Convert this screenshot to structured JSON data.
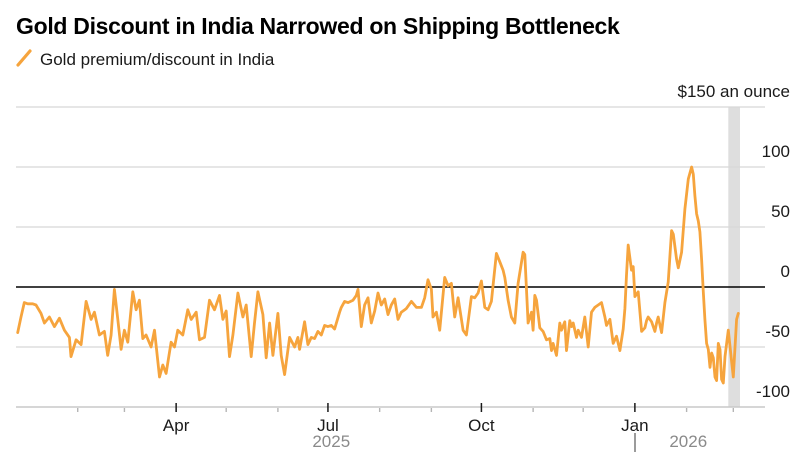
{
  "title": "Gold Discount in India Narrowed on Shipping Bottleneck",
  "legend": {
    "series_label": "Gold premium/discount in India"
  },
  "colors": {
    "line": "#F6A43D",
    "grid": "#D8D8D8",
    "axis_line": "#C9C9C9",
    "zero_line": "#000000",
    "highlight_band": "#DEDEDE",
    "text": "#1a1a1a",
    "year_text": "#8a8a8a"
  },
  "chart_data": {
    "type": "line",
    "title": "Gold Discount in India Narrowed on Shipping Bottleneck",
    "series_name": "Gold premium/discount in India",
    "unit": "US dollars per ounce",
    "ylim": [
      -100,
      150
    ],
    "grid": true,
    "zero_line": true,
    "legend_position": "top-left",
    "y_axis_side": "right",
    "y_ticks": [
      {
        "value": 150,
        "label": "$150 an ounce"
      },
      {
        "value": 100,
        "label": "100"
      },
      {
        "value": 50,
        "label": "50"
      },
      {
        "value": 0,
        "label": "0"
      },
      {
        "value": -50,
        "label": "-50"
      },
      {
        "value": -100,
        "label": "-100"
      }
    ],
    "x_axis": {
      "t_unit": "days since 2025-01-01",
      "range": [
        -6,
        443
      ],
      "major_ticks": [
        {
          "t": 90,
          "label": "Apr"
        },
        {
          "t": 181,
          "label": "Jul"
        },
        {
          "t": 273,
          "label": "Oct"
        },
        {
          "t": 365,
          "label": "Jan"
        }
      ],
      "minor_ticks": [
        31,
        59,
        120,
        151,
        212,
        243,
        304,
        334,
        396,
        424
      ],
      "year_labels": [
        {
          "label": "2025",
          "t": 183,
          "marker_t": null
        },
        {
          "label": "2026",
          "t": 397,
          "marker_t": 365
        }
      ]
    },
    "highlight_band": {
      "t_start": 421,
      "t_end": 428,
      "color": "#DEDEDE"
    },
    "points": [
      [
        -5,
        -38
      ],
      [
        -3,
        -25
      ],
      [
        -1,
        -13
      ],
      [
        1,
        -14
      ],
      [
        4,
        -14
      ],
      [
        6,
        -15
      ],
      [
        9,
        -22
      ],
      [
        11,
        -30
      ],
      [
        14,
        -25
      ],
      [
        17,
        -33
      ],
      [
        20,
        -26
      ],
      [
        23,
        -36
      ],
      [
        26,
        -42
      ],
      [
        27,
        -58
      ],
      [
        30,
        -44
      ],
      [
        33,
        -48
      ],
      [
        36,
        -12
      ],
      [
        39,
        -27
      ],
      [
        41,
        -21
      ],
      [
        44,
        -40
      ],
      [
        47,
        -37
      ],
      [
        49,
        -57
      ],
      [
        51,
        -40
      ],
      [
        53,
        -2
      ],
      [
        55,
        -27
      ],
      [
        57,
        -52
      ],
      [
        59,
        -36
      ],
      [
        61,
        -46
      ],
      [
        64,
        -4
      ],
      [
        66,
        -19
      ],
      [
        68,
        -11
      ],
      [
        70,
        -43
      ],
      [
        72,
        -40
      ],
      [
        75,
        -50
      ],
      [
        77,
        -36
      ],
      [
        80,
        -75
      ],
      [
        82,
        -65
      ],
      [
        84,
        -72
      ],
      [
        87,
        -46
      ],
      [
        89,
        -50
      ],
      [
        91,
        -36
      ],
      [
        94,
        -40
      ],
      [
        97,
        -19
      ],
      [
        99,
        -27
      ],
      [
        102,
        -21
      ],
      [
        104,
        -44
      ],
      [
        107,
        -42
      ],
      [
        110,
        -11
      ],
      [
        113,
        -19
      ],
      [
        116,
        -7
      ],
      [
        118,
        -27
      ],
      [
        120,
        -20
      ],
      [
        122,
        -58
      ],
      [
        124,
        -40
      ],
      [
        127,
        -5
      ],
      [
        130,
        -25
      ],
      [
        132,
        -15
      ],
      [
        135,
        -58
      ],
      [
        137,
        -30
      ],
      [
        139,
        -4
      ],
      [
        142,
        -23
      ],
      [
        144,
        -59
      ],
      [
        146,
        -30
      ],
      [
        148,
        -57
      ],
      [
        151,
        -22
      ],
      [
        153,
        -57
      ],
      [
        155,
        -73
      ],
      [
        158,
        -42
      ],
      [
        161,
        -50
      ],
      [
        163,
        -42
      ],
      [
        164,
        -52
      ],
      [
        167,
        -29
      ],
      [
        169,
        -48
      ],
      [
        171,
        -42
      ],
      [
        173,
        -43
      ],
      [
        175,
        -37
      ],
      [
        177,
        -40
      ],
      [
        179,
        -32
      ],
      [
        181,
        -33
      ],
      [
        183,
        -32
      ],
      [
        185,
        -35
      ],
      [
        188,
        -21
      ],
      [
        189,
        -17
      ],
      [
        191,
        -12
      ],
      [
        193,
        -13
      ],
      [
        196,
        -11
      ],
      [
        198,
        -7
      ],
      [
        199,
        -2
      ],
      [
        201,
        -33
      ],
      [
        203,
        -15
      ],
      [
        205,
        -9
      ],
      [
        207,
        -30
      ],
      [
        209,
        -20
      ],
      [
        211,
        -5
      ],
      [
        213,
        -15
      ],
      [
        215,
        -10
      ],
      [
        217,
        -23
      ],
      [
        219,
        -15
      ],
      [
        221,
        -10
      ],
      [
        223,
        -27
      ],
      [
        225,
        -21
      ],
      [
        228,
        -18
      ],
      [
        231,
        -12
      ],
      [
        234,
        -17
      ],
      [
        237,
        -17
      ],
      [
        239,
        -9
      ],
      [
        241,
        6
      ],
      [
        243,
        -2
      ],
      [
        244,
        -25
      ],
      [
        246,
        -21
      ],
      [
        248,
        -36
      ],
      [
        251,
        8
      ],
      [
        253,
        1
      ],
      [
        255,
        3
      ],
      [
        257,
        -25
      ],
      [
        259,
        -9
      ],
      [
        262,
        -36
      ],
      [
        264,
        -40
      ],
      [
        267,
        -8
      ],
      [
        269,
        -9
      ],
      [
        271,
        -5
      ],
      [
        273,
        5
      ],
      [
        275,
        -17
      ],
      [
        277,
        -19
      ],
      [
        279,
        -12
      ],
      [
        282,
        28
      ],
      [
        284,
        21
      ],
      [
        286,
        14
      ],
      [
        287,
        8
      ],
      [
        289,
        -11
      ],
      [
        291,
        -25
      ],
      [
        293,
        -30
      ],
      [
        295,
        3
      ],
      [
        298,
        29
      ],
      [
        299,
        27
      ],
      [
        301,
        -30
      ],
      [
        303,
        -21
      ],
      [
        304,
        -36
      ],
      [
        305,
        -7
      ],
      [
        306,
        -11
      ],
      [
        308,
        -34
      ],
      [
        310,
        -37
      ],
      [
        312,
        -44
      ],
      [
        314,
        -43
      ],
      [
        315,
        -53
      ],
      [
        316,
        -47
      ],
      [
        318,
        -57
      ],
      [
        320,
        -30
      ],
      [
        321,
        -36
      ],
      [
        323,
        -29
      ],
      [
        324,
        -53
      ],
      [
        326,
        -28
      ],
      [
        327,
        -33
      ],
      [
        328,
        -30
      ],
      [
        330,
        -42
      ],
      [
        331,
        -36
      ],
      [
        333,
        -42
      ],
      [
        335,
        -25
      ],
      [
        337,
        -50
      ],
      [
        339,
        -21
      ],
      [
        341,
        -17
      ],
      [
        343,
        -15
      ],
      [
        345,
        -13
      ],
      [
        347,
        -25
      ],
      [
        348,
        -32
      ],
      [
        350,
        -27
      ],
      [
        352,
        -47
      ],
      [
        354,
        -41
      ],
      [
        356,
        -53
      ],
      [
        358,
        -35
      ],
      [
        359,
        -18
      ],
      [
        360,
        10
      ],
      [
        361,
        35
      ],
      [
        363,
        14
      ],
      [
        364,
        17
      ],
      [
        365,
        -8
      ],
      [
        367,
        -4
      ],
      [
        369,
        -37
      ],
      [
        371,
        -34
      ],
      [
        372,
        -28
      ],
      [
        373,
        -25
      ],
      [
        375,
        -29
      ],
      [
        377,
        -37
      ],
      [
        378,
        -30
      ],
      [
        379,
        -25
      ],
      [
        381,
        -38
      ],
      [
        383,
        -13
      ],
      [
        385,
        4
      ],
      [
        387,
        47
      ],
      [
        388,
        44
      ],
      [
        390,
        23
      ],
      [
        391,
        16
      ],
      [
        393,
        29
      ],
      [
        395,
        65
      ],
      [
        397,
        90
      ],
      [
        399,
        100
      ],
      [
        400,
        94
      ],
      [
        401,
        76
      ],
      [
        402,
        61
      ],
      [
        403,
        55
      ],
      [
        404,
        46
      ],
      [
        405,
        23
      ],
      [
        406,
        -4
      ],
      [
        407,
        -27
      ],
      [
        408,
        -47
      ],
      [
        409,
        -52
      ],
      [
        410,
        -67
      ],
      [
        411,
        -55
      ],
      [
        412,
        -59
      ],
      [
        413,
        -75
      ],
      [
        414,
        -78
      ],
      [
        415,
        -47
      ],
      [
        416,
        -52
      ],
      [
        417,
        -77
      ],
      [
        418,
        -80
      ],
      [
        419,
        -58
      ],
      [
        421,
        -36
      ],
      [
        423,
        -62
      ],
      [
        424,
        -75
      ],
      [
        426,
        -27
      ],
      [
        427,
        -22
      ]
    ]
  }
}
